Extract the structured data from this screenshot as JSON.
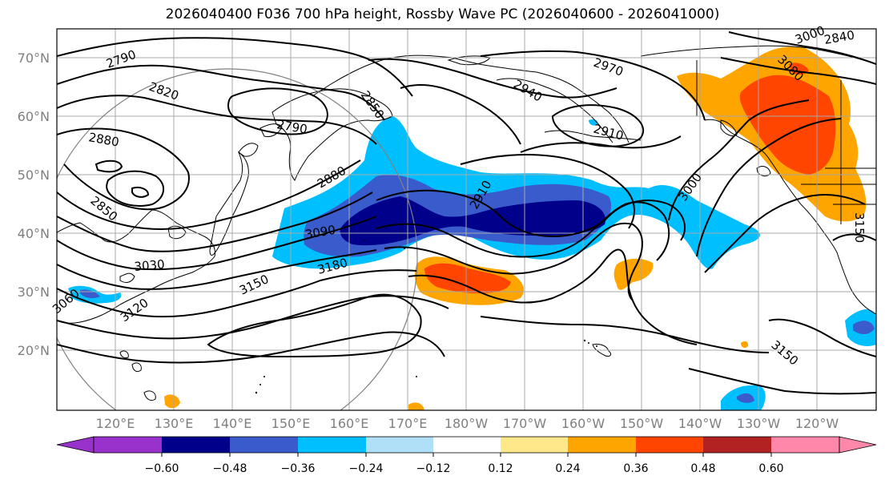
{
  "title": "2026040400 F036 700 hPa height, Rossby Wave PC (2026040600 - 2026041000)",
  "latitude_labels": [
    "70°N",
    "60°N",
    "50°N",
    "40°N",
    "30°N",
    "20°N"
  ],
  "longitude_labels": [
    "120°E",
    "130°E",
    "140°E",
    "150°E",
    "160°E",
    "170°E",
    "180°W",
    "170°W",
    "160°W",
    "150°W",
    "140°W",
    "130°W",
    "120°W"
  ],
  "contour_labels": [
    "2790",
    "2820",
    "2880",
    "2850",
    "3030",
    "3060",
    "3120",
    "3150",
    "3090",
    "3180",
    "2880",
    "2850",
    "2790",
    "2940",
    "2970",
    "2910",
    "2910",
    "3000",
    "3000",
    "3080",
    "3150",
    "3150",
    "2840"
  ],
  "colorbar": {
    "colors": [
      "#9932cc",
      "#00008b",
      "#3a5bcc",
      "#00bfff",
      "#b0e0f8",
      "#ffffff",
      "#ffe88a",
      "#ffa500",
      "#ff4500",
      "#b22222",
      "#ff88aa"
    ],
    "tick_labels": [
      "−0.60",
      "−0.48",
      "−0.36",
      "−0.24",
      "−0.12",
      "0.12",
      "0.24",
      "0.36",
      "0.48",
      "0.60"
    ]
  },
  "chart_data": {
    "type": "heatmap",
    "title": "2026040400 F036 700 hPa height, Rossby Wave PC (2026040600 - 2026041000)",
    "variable_contours": "700 hPa geopotential height (m)",
    "variable_shaded": "Rossby Wave PC",
    "contour_levels_labeled": [
      2790,
      2820,
      2840,
      2850,
      2880,
      2910,
      2940,
      2970,
      3000,
      3030,
      3060,
      3080,
      3090,
      3120,
      3150,
      3180
    ],
    "lat_range": [
      10,
      75
    ],
    "lon_range_east": [
      110,
      250
    ],
    "colorbar_bounds": [
      -0.6,
      -0.48,
      -0.36,
      -0.24,
      -0.12,
      0.12,
      0.24,
      0.36,
      0.48,
      0.6
    ],
    "colorbar_extend": "both"
  }
}
